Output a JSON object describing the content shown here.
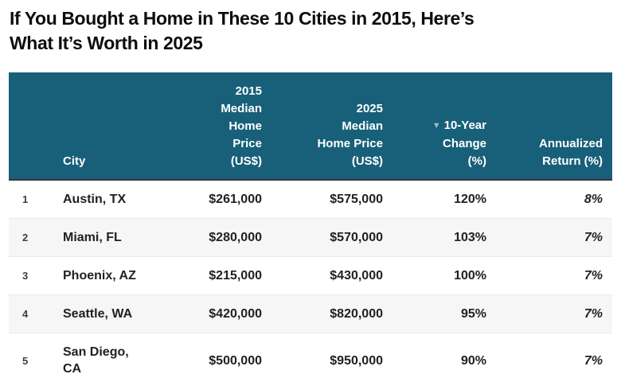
{
  "title": "If You Bought a Home in These 10 Cities in 2015, Here’s\nWhat It’s Worth in 2025",
  "table": {
    "sort_indicator": "▼",
    "sorted_by": "10-Year Change (%)",
    "sort_direction": "descending",
    "columns": [
      {
        "key": "rank",
        "label": ""
      },
      {
        "key": "city",
        "label": "City"
      },
      {
        "key": "price2015",
        "label": "2015 Median Home Price (US$)"
      },
      {
        "key": "price2025",
        "label": "2025 Median Home Price (US$)"
      },
      {
        "key": "change",
        "label": "10-Year Change (%)"
      },
      {
        "key": "annualized",
        "label": "Annualized Return (%)"
      }
    ],
    "rows": [
      {
        "rank": "1",
        "city": "Austin, TX",
        "price2015": "$261,000",
        "price2025": "$575,000",
        "change": "120%",
        "annualized": "8%"
      },
      {
        "rank": "2",
        "city": "Miami, FL",
        "price2015": "$280,000",
        "price2025": "$570,000",
        "change": "103%",
        "annualized": "7%"
      },
      {
        "rank": "3",
        "city": "Phoenix, AZ",
        "price2015": "$215,000",
        "price2025": "$430,000",
        "change": "100%",
        "annualized": "7%"
      },
      {
        "rank": "4",
        "city": "Seattle, WA",
        "price2015": "$420,000",
        "price2025": "$820,000",
        "change": "95%",
        "annualized": "7%"
      },
      {
        "rank": "5",
        "city": "San Diego, CA",
        "price2015": "$500,000",
        "price2025": "$950,000",
        "change": "90%",
        "annualized": "7%"
      }
    ]
  },
  "colors": {
    "header_background": "#186079",
    "header_text": "#ffffff",
    "header_bottom_border": "#383838",
    "sort_icon": "#9db7c3",
    "row_alt_background": "#f6f6f6",
    "row_border": "#e9e9e9",
    "body_text": "#212121",
    "title_text": "#0d0d0d"
  },
  "chart_data": {
    "type": "table",
    "title": "If You Bought a Home in These 10 Cities in 2015, Here’s What It’s Worth in 2025",
    "columns": [
      "City",
      "2015 Median Home Price (US$)",
      "2025 Median Home Price (US$)",
      "10-Year Change (%)",
      "Annualized Return (%)"
    ],
    "rows": [
      [
        "Austin, TX",
        261000,
        575000,
        120,
        8
      ],
      [
        "Miami, FL",
        280000,
        570000,
        103,
        7
      ],
      [
        "Phoenix, AZ",
        215000,
        430000,
        100,
        7
      ],
      [
        "Seattle, WA",
        420000,
        820000,
        95,
        7
      ],
      [
        "San Diego, CA",
        500000,
        950000,
        90,
        7
      ]
    ],
    "layout_hints": {
      "sorted_by_column": "10-Year Change (%)",
      "sort_direction": "descending",
      "rows_visible_in_crop": 5,
      "zebra_striping": true
    }
  }
}
